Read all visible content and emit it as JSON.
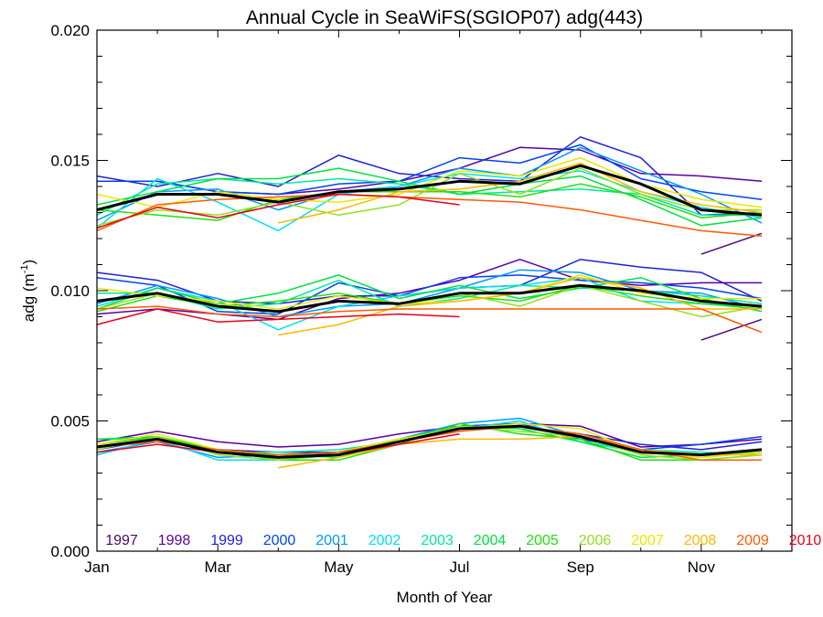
{
  "chart_data": {
    "type": "line",
    "title": "Annual Cycle in SeaWiFS(SGIOP07) adg(443)",
    "xlabel": "Month of Year",
    "ylabel_main": "adg (m",
    "ylabel_exp": "-1",
    "ylabel_close": ")",
    "xlim": [
      1,
      12.5
    ],
    "ylim": [
      0.0,
      0.02
    ],
    "xticks": [
      {
        "value": 1,
        "label": "Jan"
      },
      {
        "value": 3,
        "label": "Mar"
      },
      {
        "value": 5,
        "label": "May"
      },
      {
        "value": 7,
        "label": "Jul"
      },
      {
        "value": 9,
        "label": "Sep"
      },
      {
        "value": 11,
        "label": "Nov"
      }
    ],
    "yticks": [
      {
        "value": 0.0,
        "label": "0.000"
      },
      {
        "value": 0.005,
        "label": "0.005"
      },
      {
        "value": 0.01,
        "label": "0.010"
      },
      {
        "value": 0.015,
        "label": "0.015"
      },
      {
        "value": 0.02,
        "label": "0.020"
      }
    ],
    "x": [
      1,
      2,
      3,
      4,
      5,
      6,
      7,
      8,
      9,
      10,
      11,
      12
    ],
    "legend_position": "bottom",
    "years": [
      {
        "name": "1997",
        "color": "#4a0a6e",
        "groups": [
          [
            null,
            null,
            null,
            null,
            null,
            null,
            null,
            null,
            null,
            null,
            0.0114,
            0.0122
          ],
          [
            null,
            null,
            null,
            null,
            null,
            null,
            null,
            null,
            null,
            null,
            0.0081,
            0.0089
          ],
          [
            null,
            null,
            null,
            null,
            null,
            null,
            null,
            null,
            null,
            0.0038,
            0.0037,
            0.0039
          ]
        ]
      },
      {
        "name": "1998",
        "color": "#5a00a0",
        "groups": [
          [
            0.0142,
            0.0142,
            0.0138,
            0.0137,
            0.0139,
            0.0142,
            0.0147,
            0.0155,
            0.0154,
            0.0145,
            0.0144,
            0.0142
          ],
          [
            0.0091,
            0.0093,
            0.0091,
            0.0089,
            0.0097,
            0.0099,
            0.0104,
            0.0112,
            0.0104,
            0.0102,
            0.0103,
            0.0103
          ],
          [
            0.0042,
            0.0046,
            0.0042,
            0.004,
            0.0041,
            0.0045,
            0.0048,
            0.0049,
            0.0048,
            0.004,
            0.0041,
            0.0043
          ]
        ]
      },
      {
        "name": "1999",
        "color": "#2020d0",
        "groups": [
          [
            0.0144,
            0.014,
            0.0145,
            0.014,
            0.0152,
            0.0145,
            0.0143,
            0.0142,
            0.0159,
            0.0151,
            0.0129,
            0.013
          ],
          [
            0.0107,
            0.0104,
            0.0096,
            0.0095,
            0.0098,
            0.0098,
            0.0101,
            0.0102,
            0.0112,
            0.0109,
            0.0107,
            0.0096
          ],
          [
            0.0039,
            0.0043,
            0.0039,
            0.0038,
            0.0038,
            0.0043,
            0.0047,
            0.0048,
            0.0045,
            0.0041,
            0.0039,
            0.0042
          ]
        ]
      },
      {
        "name": "2000",
        "color": "#0044ee",
        "groups": [
          [
            0.0142,
            0.0142,
            0.0138,
            0.0137,
            0.0141,
            0.0142,
            0.0151,
            0.0149,
            0.0156,
            0.0143,
            0.0138,
            0.0135
          ],
          [
            0.0105,
            0.0102,
            0.0092,
            0.0091,
            0.0103,
            0.0098,
            0.0105,
            0.0106,
            0.0104,
            0.0103,
            0.0101,
            0.0097
          ],
          [
            0.0037,
            0.0043,
            0.0038,
            0.0036,
            0.0038,
            0.0042,
            0.0048,
            0.0049,
            0.0043,
            0.0039,
            0.0041,
            0.0044
          ]
        ]
      },
      {
        "name": "2001",
        "color": "#0099ff",
        "groups": [
          [
            0.0127,
            0.0138,
            0.0139,
            0.0131,
            0.0138,
            0.014,
            0.0147,
            0.0144,
            0.0155,
            0.0146,
            0.0137,
            0.0126
          ],
          [
            0.0095,
            0.0102,
            0.0097,
            0.009,
            0.0094,
            0.0095,
            0.0101,
            0.0108,
            0.0107,
            0.01,
            0.0099,
            0.0093
          ],
          [
            0.0038,
            0.0042,
            0.0036,
            0.0037,
            0.0037,
            0.0043,
            0.0049,
            0.0051,
            0.0044,
            0.0039,
            0.0036,
            0.0039
          ]
        ]
      },
      {
        "name": "2002",
        "color": "#00e0f0",
        "groups": [
          [
            0.0124,
            0.0143,
            0.0134,
            0.0123,
            0.0137,
            0.014,
            0.0145,
            0.0143,
            0.0146,
            0.0138,
            0.0132,
            0.0128
          ],
          [
            0.0094,
            0.0101,
            0.0096,
            0.0085,
            0.0094,
            0.0098,
            0.0101,
            0.0102,
            0.0105,
            0.0096,
            0.0095,
            0.0094
          ],
          [
            0.0037,
            0.0043,
            0.0035,
            0.0035,
            0.0037,
            0.0042,
            0.0047,
            0.005,
            0.0042,
            0.0038,
            0.0036,
            0.0038
          ]
        ]
      },
      {
        "name": "2003",
        "color": "#00e8a0",
        "groups": [
          [
            0.0129,
            0.0141,
            0.0143,
            0.0141,
            0.0143,
            0.0141,
            0.0137,
            0.0138,
            0.0139,
            0.0137,
            0.0129,
            0.0129
          ],
          [
            0.0099,
            0.0099,
            0.0093,
            0.0095,
            0.0104,
            0.0094,
            0.0097,
            0.0102,
            0.0101,
            0.01,
            0.0098,
            0.0095
          ],
          [
            0.0043,
            0.0043,
            0.0038,
            0.0038,
            0.0039,
            0.0042,
            0.0048,
            0.0047,
            0.0042,
            0.0039,
            0.0038,
            0.0037
          ]
        ]
      },
      {
        "name": "2004",
        "color": "#00e040",
        "groups": [
          [
            0.0133,
            0.0138,
            0.0143,
            0.0143,
            0.0147,
            0.0142,
            0.0137,
            0.0141,
            0.0144,
            0.0135,
            0.0125,
            0.0128
          ],
          [
            0.0093,
            0.0101,
            0.0095,
            0.0099,
            0.0106,
            0.0097,
            0.0102,
            0.0097,
            0.0101,
            0.0105,
            0.0097,
            0.0092
          ],
          [
            0.0043,
            0.0044,
            0.0038,
            0.0037,
            0.0036,
            0.0043,
            0.0048,
            0.0047,
            0.0042,
            0.0036,
            0.0037,
            0.0038
          ]
        ]
      },
      {
        "name": "2005",
        "color": "#20e010",
        "groups": [
          [
            0.0131,
            0.0129,
            0.0127,
            0.0135,
            0.0138,
            0.0138,
            0.0138,
            0.0136,
            0.0141,
            0.0136,
            0.0128,
            0.013
          ],
          [
            0.0092,
            0.0098,
            0.0094,
            0.0096,
            0.0099,
            0.0095,
            0.0098,
            0.0096,
            0.0102,
            0.0098,
            0.0095,
            0.0093
          ],
          [
            0.0041,
            0.0044,
            0.0039,
            0.0035,
            0.0035,
            0.0041,
            0.0049,
            0.0045,
            0.0043,
            0.0035,
            0.0035,
            0.0037
          ]
        ]
      },
      {
        "name": "2006",
        "color": "#90e020",
        "groups": [
          [
            0.0125,
            0.0131,
            0.0129,
            0.0134,
            0.0129,
            0.0133,
            0.0145,
            0.0137,
            0.0147,
            0.0137,
            0.0131,
            0.0131
          ],
          [
            0.0093,
            0.0099,
            0.0095,
            0.0092,
            0.0096,
            0.0095,
            0.0099,
            0.0094,
            0.0102,
            0.0096,
            0.009,
            0.0094
          ],
          [
            0.0039,
            0.0044,
            0.0037,
            0.0035,
            0.0037,
            0.0042,
            0.0048,
            0.0046,
            0.0044,
            0.0037,
            0.0035,
            0.0037
          ]
        ]
      },
      {
        "name": "2007",
        "color": "#e8e800",
        "groups": [
          [
            0.0137,
            0.0132,
            0.0138,
            0.0135,
            0.0134,
            0.0137,
            0.0146,
            0.0144,
            0.0151,
            0.0141,
            0.0135,
            0.0132
          ],
          [
            0.0101,
            0.0098,
            0.0096,
            0.0093,
            0.0098,
            0.0095,
            0.0096,
            0.0099,
            0.0106,
            0.0099,
            0.0097,
            0.0097
          ],
          [
            0.0041,
            0.0045,
            0.0039,
            0.0037,
            0.0038,
            0.0043,
            0.0047,
            0.0049,
            0.0047,
            0.0038,
            0.0036,
            0.0038
          ]
        ]
      },
      {
        "name": "2008",
        "color": "#ffb800",
        "groups": [
          [
            null,
            null,
            null,
            0.0126,
            0.0131,
            0.0138,
            0.0139,
            0.0142,
            0.0149,
            0.0138,
            0.0133,
            0.013
          ],
          [
            null,
            null,
            null,
            0.0083,
            0.0087,
            0.0094,
            0.0096,
            0.0099,
            0.0105,
            0.0101,
            0.0093,
            0.0093
          ],
          [
            null,
            null,
            null,
            0.0032,
            0.0036,
            0.0041,
            0.0043,
            0.0043,
            0.0044,
            0.0039,
            0.0037,
            0.0037
          ]
        ]
      },
      {
        "name": "2009",
        "color": "#ff5a00",
        "groups": [
          [
            0.0123,
            0.0133,
            0.0135,
            0.0136,
            0.0137,
            0.0136,
            0.0135,
            0.0134,
            0.0131,
            0.0127,
            0.0123,
            0.0121
          ],
          [
            0.0093,
            0.0094,
            0.0091,
            0.009,
            0.0092,
            0.0093,
            0.0093,
            0.0093,
            0.0093,
            0.0093,
            0.0093,
            0.0084
          ],
          [
            0.004,
            0.0042,
            0.0039,
            0.0037,
            0.0038,
            0.0042,
            0.0046,
            0.0048,
            0.0045,
            0.0039,
            0.0035,
            0.0035
          ]
        ]
      },
      {
        "name": "2010",
        "color": "#e8001a",
        "groups": [
          [
            0.0124,
            0.0132,
            0.0128,
            0.0133,
            0.0137,
            0.0136,
            0.0133,
            null,
            null,
            null,
            null,
            null
          ],
          [
            0.0087,
            0.0093,
            0.0088,
            0.0089,
            0.009,
            0.0091,
            0.009,
            null,
            null,
            null,
            null,
            null
          ],
          [
            0.0038,
            0.0041,
            0.0038,
            0.0036,
            0.0037,
            0.0041,
            0.0045,
            null,
            null,
            null,
            null,
            null
          ]
        ]
      }
    ],
    "mean": {
      "color": "#000000",
      "groups": [
        [
          0.0131,
          0.0137,
          0.0137,
          0.0134,
          0.0138,
          0.0139,
          0.0142,
          0.0141,
          0.0148,
          0.0141,
          0.0131,
          0.0129
        ],
        [
          0.0096,
          0.0099,
          0.0094,
          0.0092,
          0.0096,
          0.0095,
          0.0099,
          0.0099,
          0.0102,
          0.01,
          0.0096,
          0.0094
        ],
        [
          0.004,
          0.0043,
          0.0038,
          0.0036,
          0.0037,
          0.0042,
          0.0047,
          0.0048,
          0.0044,
          0.0038,
          0.0037,
          0.0039
        ]
      ]
    }
  }
}
